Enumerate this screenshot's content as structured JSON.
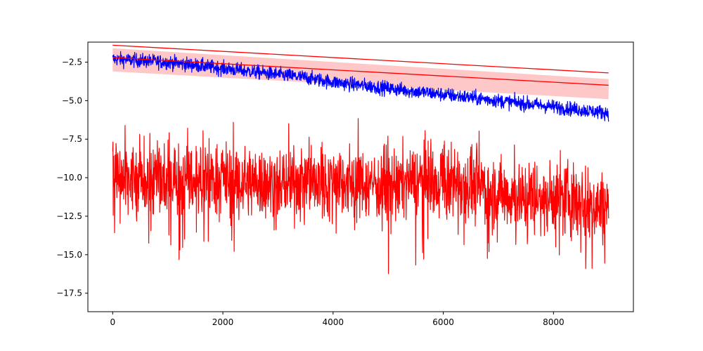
{
  "chart_data": {
    "type": "line",
    "title": "",
    "xlabel": "",
    "ylabel": "",
    "xlim": [
      -450,
      9450
    ],
    "ylim": [
      -18.7,
      -1.2
    ],
    "x_ticks": [
      {
        "value": 0,
        "label": "0"
      },
      {
        "value": 2000,
        "label": "2000"
      },
      {
        "value": 4000,
        "label": "4000"
      },
      {
        "value": 6000,
        "label": "6000"
      },
      {
        "value": 8000,
        "label": "8000"
      }
    ],
    "y_ticks": [
      {
        "value": -2.5,
        "label": "−2.5"
      },
      {
        "value": -5.0,
        "label": "−5.0"
      },
      {
        "value": -7.5,
        "label": "−7.5"
      },
      {
        "value": -10.0,
        "label": "−10.0"
      },
      {
        "value": -12.5,
        "label": "−12.5"
      },
      {
        "value": -15.0,
        "label": "−15.0"
      },
      {
        "value": -17.5,
        "label": "−17.5"
      }
    ],
    "grid": false,
    "legend": "none",
    "series": [
      {
        "color": "#0000ff",
        "kind": "noisy-line",
        "x": [
          0,
          500,
          1000,
          1500,
          2000,
          2500,
          3000,
          3500,
          4000,
          4500,
          5000,
          5500,
          6000,
          6500,
          7000,
          7500,
          8000,
          8500,
          9000
        ],
        "y": [
          -2.3,
          -2.4,
          -2.5,
          -2.7,
          -2.9,
          -3.1,
          -3.3,
          -3.5,
          -3.8,
          -4.0,
          -4.2,
          -4.4,
          -4.6,
          -4.8,
          -5.0,
          -5.2,
          -5.4,
          -5.6,
          -5.8
        ],
        "spread": 0.45
      },
      {
        "color": "#ff0000",
        "kind": "noisy-line",
        "x": [
          0,
          500,
          1000,
          1500,
          2000,
          2500,
          3000,
          3500,
          4000,
          4500,
          5000,
          5500,
          6000,
          6500,
          7000,
          7500,
          8000,
          8500,
          9000
        ],
        "y": [
          -10.0,
          -10.3,
          -10.0,
          -10.2,
          -10.0,
          -10.3,
          -10.4,
          -10.2,
          -10.0,
          -10.3,
          -10.4,
          -10.2,
          -10.1,
          -10.5,
          -11.0,
          -11.3,
          -11.2,
          -11.6,
          -12.0
        ],
        "spread": 1.6
      },
      {
        "color": "#ff0000",
        "kind": "line",
        "x": [
          0,
          9000
        ],
        "y": [
          -1.4,
          -3.2
        ]
      },
      {
        "color": "#ff0000",
        "kind": "line",
        "x": [
          0,
          9000
        ],
        "y": [
          -2.2,
          -4.0
        ]
      }
    ],
    "band": {
      "color": "#ffc8c8",
      "x": [
        0,
        9000
      ],
      "upper": [
        -1.6,
        -3.6
      ],
      "lower": [
        -3.1,
        -4.9
      ]
    }
  }
}
